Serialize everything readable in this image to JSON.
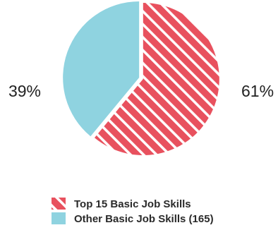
{
  "chart_data": {
    "type": "pie",
    "slices": [
      {
        "label": "Top 15 Basic Job Skills",
        "value": 61,
        "value_label": "61%",
        "color": "#e8515e",
        "pattern": "diagonal-stripes-white"
      },
      {
        "label": "Other Basic Job Skills (165)",
        "value": 39,
        "value_label": "39%",
        "color": "#8fd3e0",
        "pattern": "solid"
      }
    ],
    "legend": {
      "placement": "bottom",
      "entries": [
        "Top 15 Basic Job Skills",
        "Other Basic Job Skills (165)"
      ]
    }
  }
}
